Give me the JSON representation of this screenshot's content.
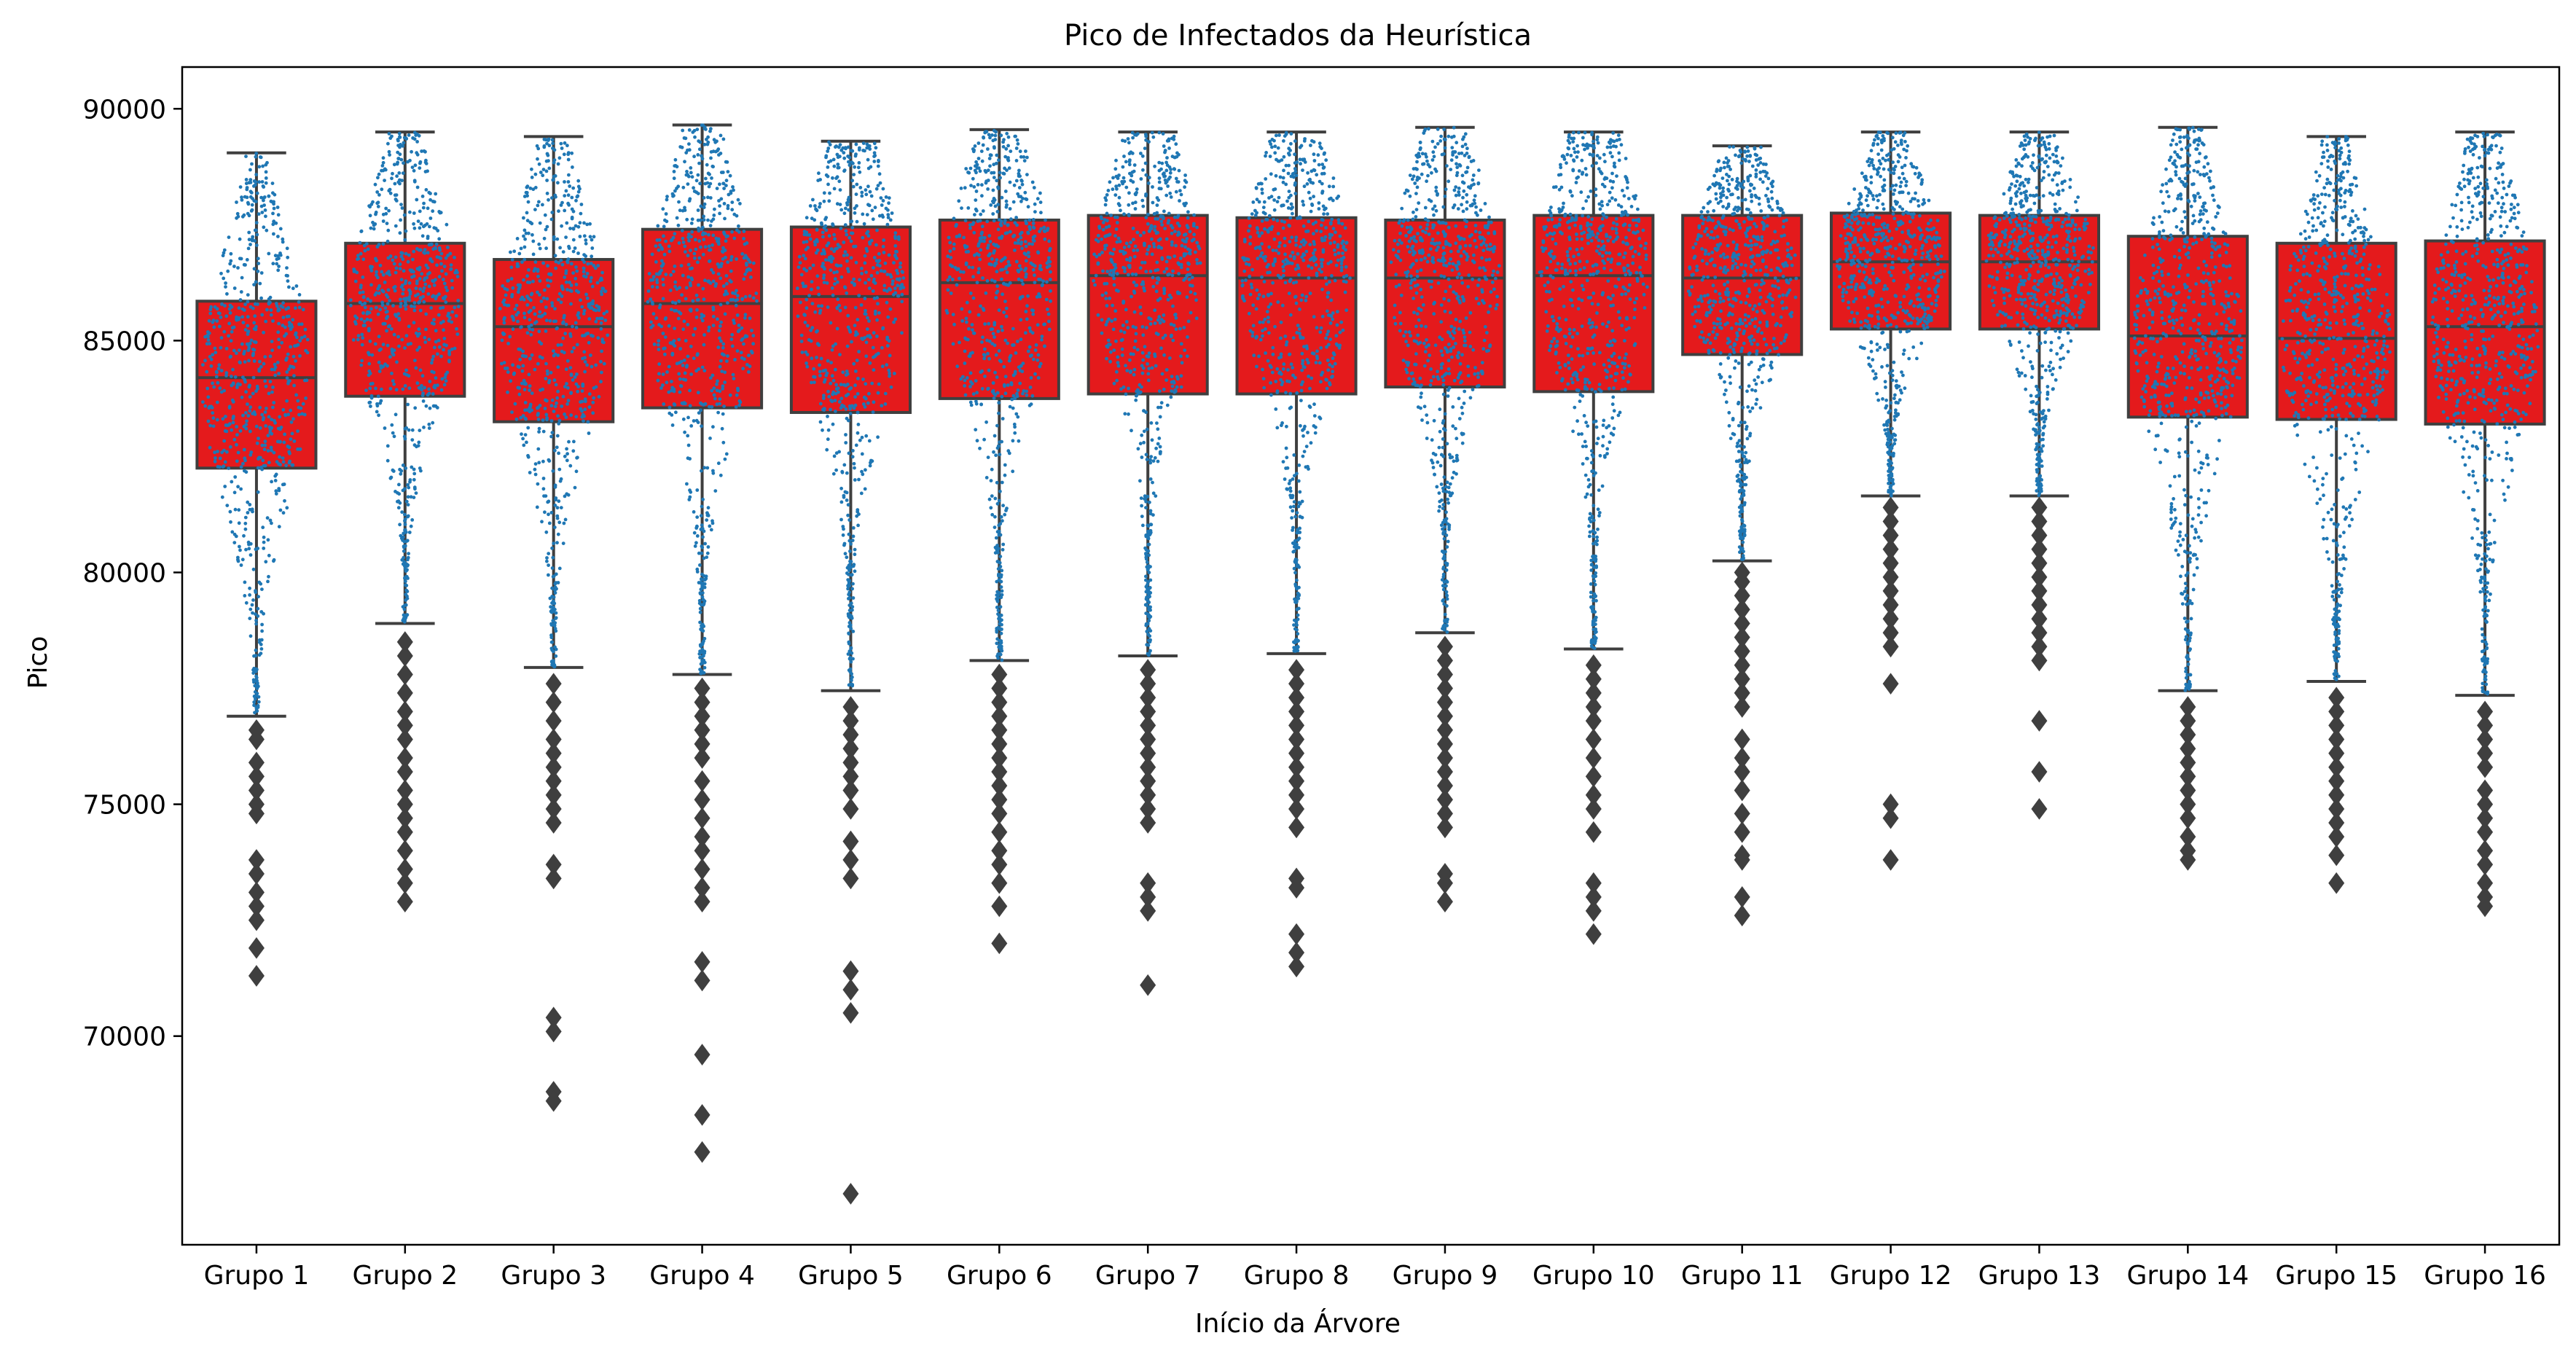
{
  "chart_data": {
    "type": "box",
    "title": "Pico de Infectados da Heurística",
    "xlabel": "Início da Árvore",
    "ylabel": "Pico",
    "ylim": [
      65500,
      90900
    ],
    "yticks": [
      70000,
      75000,
      80000,
      85000,
      90000
    ],
    "grid": false,
    "colors": {
      "box_fill": "#e41a1c",
      "box_edge": "#3f3f3f",
      "swarm": "#1f77b4",
      "outlier": "#3f3f3f"
    },
    "categories": [
      "Grupo 1",
      "Grupo 2",
      "Grupo 3",
      "Grupo 4",
      "Grupo 5",
      "Grupo 6",
      "Grupo 7",
      "Grupo 8",
      "Grupo 9",
      "Grupo 10",
      "Grupo 11",
      "Grupo 12",
      "Grupo 13",
      "Grupo 14",
      "Grupo 15",
      "Grupo 16"
    ],
    "boxes": [
      {
        "whisker_low": 76900,
        "q1": 82250,
        "median": 84200,
        "q3": 85850,
        "whisker_high": 89050,
        "outliers": [
          76600,
          76400,
          75900,
          75600,
          75300,
          75000,
          74800,
          73800,
          73500,
          73100,
          72800,
          72500,
          71900,
          71300
        ]
      },
      {
        "whisker_low": 78900,
        "q1": 83800,
        "median": 85800,
        "q3": 87100,
        "whisker_high": 89500,
        "outliers": [
          78500,
          78200,
          77800,
          77400,
          77000,
          76700,
          76400,
          76000,
          75700,
          75300,
          75000,
          74700,
          74400,
          74000,
          73600,
          73300,
          72900
        ]
      },
      {
        "whisker_low": 77950,
        "q1": 83250,
        "median": 85300,
        "q3": 86750,
        "whisker_high": 89400,
        "outliers": [
          77600,
          77200,
          76800,
          76400,
          76100,
          75800,
          75500,
          75200,
          74900,
          74600,
          73700,
          73400,
          70400,
          70100,
          68800,
          68600
        ]
      },
      {
        "whisker_low": 77800,
        "q1": 83550,
        "median": 85800,
        "q3": 87400,
        "whisker_high": 89650,
        "outliers": [
          77500,
          77200,
          76900,
          76600,
          76300,
          76000,
          75500,
          75100,
          74700,
          74300,
          74000,
          73600,
          73200,
          72900,
          71600,
          71200,
          69600,
          68300,
          67500
        ]
      },
      {
        "whisker_low": 77450,
        "q1": 83450,
        "median": 85950,
        "q3": 87450,
        "whisker_high": 89300,
        "outliers": [
          77100,
          76800,
          76500,
          76200,
          75900,
          75600,
          75300,
          74900,
          74200,
          73800,
          73400,
          71400,
          71000,
          70500,
          66600
        ]
      },
      {
        "whisker_low": 78100,
        "q1": 83750,
        "median": 86250,
        "q3": 87600,
        "whisker_high": 89550,
        "outliers": [
          77800,
          77500,
          77200,
          76900,
          76600,
          76300,
          76000,
          75700,
          75400,
          75100,
          74800,
          74400,
          74000,
          73700,
          73300,
          72800,
          72000
        ]
      },
      {
        "whisker_low": 78200,
        "q1": 83850,
        "median": 86400,
        "q3": 87700,
        "whisker_high": 89500,
        "outliers": [
          77900,
          77600,
          77300,
          77000,
          76700,
          76400,
          76100,
          75800,
          75500,
          75200,
          74900,
          74600,
          73300,
          73000,
          72700,
          71100
        ]
      },
      {
        "whisker_low": 78250,
        "q1": 83850,
        "median": 86350,
        "q3": 87650,
        "whisker_high": 89500,
        "outliers": [
          77900,
          77600,
          77300,
          77000,
          76700,
          76400,
          76100,
          75800,
          75500,
          75200,
          74900,
          74500,
          73400,
          73200,
          72200,
          71800,
          71500
        ]
      },
      {
        "whisker_low": 78700,
        "q1": 84000,
        "median": 86350,
        "q3": 87600,
        "whisker_high": 89600,
        "outliers": [
          78400,
          78100,
          77800,
          77500,
          77200,
          76900,
          76600,
          76300,
          76000,
          75700,
          75400,
          75100,
          74800,
          74500,
          73500,
          73300,
          72900
        ]
      },
      {
        "whisker_low": 78350,
        "q1": 83900,
        "median": 86400,
        "q3": 87700,
        "whisker_high": 89500,
        "outliers": [
          78000,
          77700,
          77400,
          77100,
          76800,
          76400,
          76000,
          75600,
          75200,
          74900,
          74400,
          73300,
          73000,
          72700,
          72200
        ]
      },
      {
        "whisker_low": 80250,
        "q1": 84700,
        "median": 86350,
        "q3": 87700,
        "whisker_high": 89200,
        "outliers": [
          80000,
          79800,
          79500,
          79200,
          78900,
          78600,
          78300,
          78000,
          77700,
          77400,
          77100,
          76400,
          76000,
          75700,
          75300,
          74800,
          74400,
          73900,
          73800,
          73000,
          72600
        ]
      },
      {
        "whisker_low": 81650,
        "q1": 85250,
        "median": 86700,
        "q3": 87750,
        "whisker_high": 89500,
        "outliers": [
          81400,
          81100,
          80800,
          80500,
          80200,
          79900,
          79600,
          79300,
          79000,
          78700,
          78400,
          77600,
          75000,
          74700,
          73800
        ]
      },
      {
        "whisker_low": 81650,
        "q1": 85250,
        "median": 86700,
        "q3": 87700,
        "whisker_high": 89500,
        "outliers": [
          81400,
          81100,
          80800,
          80500,
          80200,
          79900,
          79600,
          79300,
          79000,
          78700,
          78400,
          78100,
          76800,
          75700,
          74900
        ]
      },
      {
        "whisker_low": 77450,
        "q1": 83350,
        "median": 85100,
        "q3": 87250,
        "whisker_high": 89600,
        "outliers": [
          77100,
          76800,
          76500,
          76200,
          75900,
          75600,
          75300,
          75000,
          74700,
          74300,
          74000,
          73800
        ]
      },
      {
        "whisker_low": 77650,
        "q1": 83300,
        "median": 85050,
        "q3": 87100,
        "whisker_high": 89400,
        "outliers": [
          77300,
          77000,
          76700,
          76400,
          76100,
          75800,
          75500,
          75200,
          74900,
          74600,
          74300,
          73900,
          73300
        ]
      },
      {
        "whisker_low": 77350,
        "q1": 83200,
        "median": 85300,
        "q3": 87150,
        "whisker_high": 89500,
        "outliers": [
          77000,
          76700,
          76400,
          76100,
          75800,
          75300,
          75000,
          74700,
          74400,
          74000,
          73700,
          73300,
          73000,
          72800
        ]
      }
    ]
  }
}
